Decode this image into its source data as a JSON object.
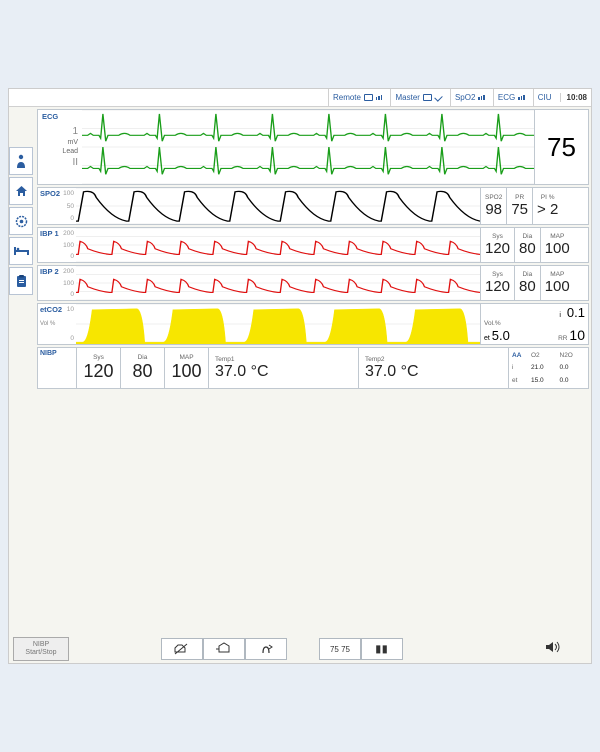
{
  "topbar": {
    "items": [
      {
        "label": "Remote"
      },
      {
        "label": "Master"
      },
      {
        "label": "SpO2"
      },
      {
        "label": "ECG"
      },
      {
        "label": "CIU"
      }
    ],
    "time": "10:08"
  },
  "sidebar": {
    "items": [
      "person",
      "home",
      "gear",
      "bed",
      "clipboard"
    ]
  },
  "ecg": {
    "header": "ECG",
    "scale": "1",
    "unit": "mV",
    "lead_label": "Lead",
    "lead": "II",
    "hr_value": "75",
    "color": "#1a9e1a",
    "cycles": 8
  },
  "spo2": {
    "header": "SPO2",
    "scale_top": "100",
    "scale_mid": "50",
    "scale_bot": "0",
    "color": "#000000",
    "readouts": [
      {
        "lbl": "SPO2",
        "val": "98"
      },
      {
        "lbl": "PR",
        "val": "75"
      },
      {
        "lbl": "PI %",
        "val": "> 2"
      }
    ],
    "cycles": 8
  },
  "ibp1": {
    "header": "IBP 1",
    "scale": [
      "200",
      "150",
      "100",
      "50",
      "0"
    ],
    "unit": "mmHg",
    "color": "#e01010",
    "readouts": [
      {
        "lbl": "Sys",
        "val": "120"
      },
      {
        "lbl": "Dia",
        "val": "80"
      },
      {
        "lbl": "MAP",
        "val": "100"
      }
    ],
    "cycles": 12
  },
  "ibp2": {
    "header": "IBP 2",
    "scale": [
      "200",
      "150",
      "100",
      "50",
      "0"
    ],
    "unit": "mmHg",
    "color": "#e01010",
    "readouts": [
      {
        "lbl": "Sys",
        "val": "120"
      },
      {
        "lbl": "Dia",
        "val": "80"
      },
      {
        "lbl": "MAP",
        "val": "100"
      }
    ],
    "cycles": 12
  },
  "etco2": {
    "header": "etCO2",
    "scale": [
      "10",
      "5",
      "0"
    ],
    "unit": "Vol %",
    "color": "#f7e600",
    "readouts": {
      "i_lbl": "i",
      "i_val": "0.1",
      "vol_lbl": "Vol.%",
      "et_lbl": "et",
      "et_val": "5.0",
      "rr_lbl": "RR",
      "rr_val": "10"
    },
    "cycles": 5
  },
  "bottom": {
    "nibp": {
      "header": "NIBP",
      "sys_lbl": "Sys",
      "sys": "120",
      "dia_lbl": "Dia",
      "dia": "80",
      "map_lbl": "MAP",
      "map": "100"
    },
    "temp1": {
      "lbl": "Temp1",
      "val": "37.0 °C"
    },
    "temp2": {
      "lbl": "Temp2",
      "val": "37.0 °C"
    },
    "aa": {
      "hdr": "AA",
      "pct": "%",
      "o2": "O2",
      "n2o": "N2O",
      "i": "i",
      "i_o2": "21.0",
      "i_n2o": "0.0",
      "et": "et",
      "et_o2": "15.0",
      "et_n2o": "0.0"
    }
  },
  "footer": {
    "nibp_btn_l1": "NIBP",
    "nibp_btn_l2": "Start/Stop",
    "group1": [
      "alarm-off",
      "alarm-limits",
      "alarm-reset"
    ],
    "group2": [
      "numbers",
      "pause"
    ],
    "vol": "speaker"
  }
}
